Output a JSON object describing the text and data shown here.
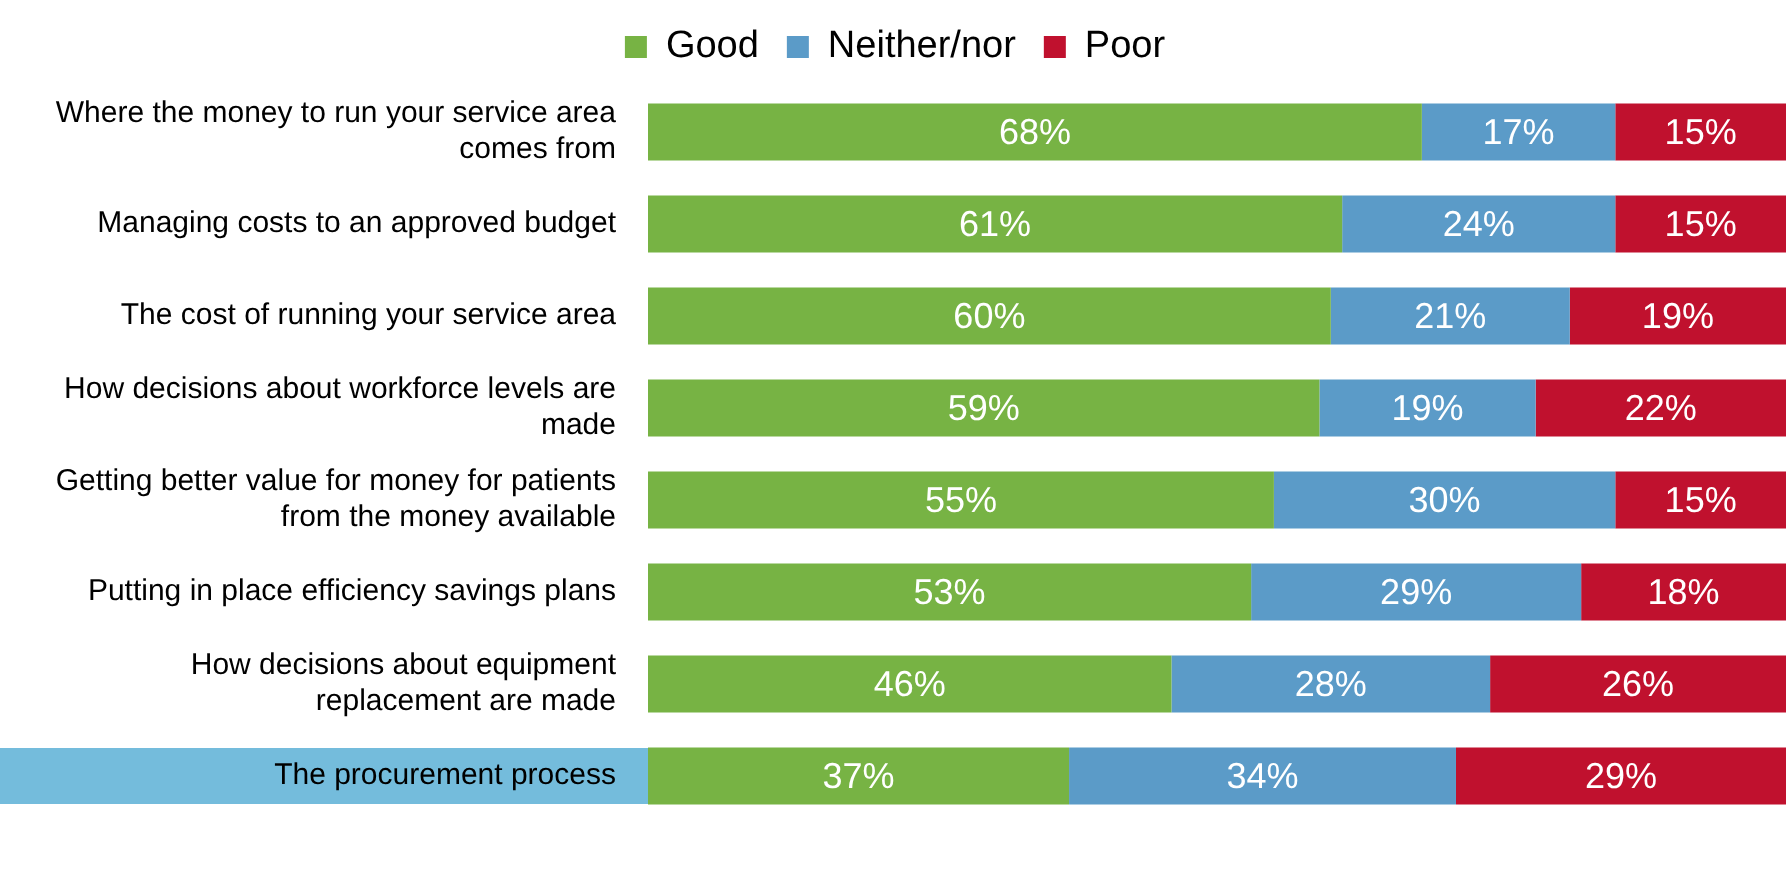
{
  "chart_data": {
    "type": "bar",
    "orientation": "horizontal",
    "stacked": true,
    "categories": [
      "Where the money to run your service area comes from",
      "Managing costs to an approved budget",
      "The cost of running your service area",
      "How decisions about workforce levels are made",
      "Getting better value for money for patients from the money available",
      "Putting in place efficiency savings plans",
      "How decisions about equipment replacement are made",
      "The procurement process"
    ],
    "series": [
      {
        "name": "Good",
        "color": "#77b344",
        "values": [
          68,
          61,
          60,
          59,
          55,
          53,
          46,
          37
        ],
        "value_labels": [
          "68%",
          "61%",
          "60%",
          "59%",
          "55%",
          "53%",
          "46%",
          "37%"
        ]
      },
      {
        "name": "Neither/nor",
        "color": "#5b9bc8",
        "values": [
          17,
          24,
          21,
          19,
          30,
          29,
          28,
          34
        ],
        "value_labels": [
          "17%",
          "24%",
          "21%",
          "19%",
          "30%",
          "29%",
          "28%",
          "34%"
        ]
      },
      {
        "name": "Poor",
        "color": "#c0112e",
        "values": [
          15,
          15,
          19,
          22,
          15,
          18,
          26,
          29
        ],
        "value_labels": [
          "15%",
          "15%",
          "19%",
          "22%",
          "15%",
          "18%",
          "26%",
          "29%"
        ]
      }
    ],
    "tick_labels": "y",
    "legend": "top"
  }
}
